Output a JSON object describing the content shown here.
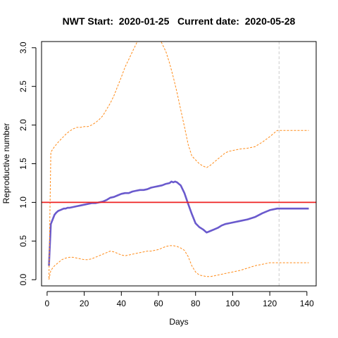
{
  "chart_data": {
    "type": "line",
    "title": "NWT Start:  2020-01-25   Current date:  2020-05-28",
    "xlabel": "Days",
    "ylabel": "Reproductive number",
    "xlim": [
      -3,
      145
    ],
    "ylim": [
      -0.08,
      3.08
    ],
    "x_ticks": [
      0,
      20,
      40,
      60,
      80,
      100,
      120,
      140
    ],
    "y_ticks": [
      0.0,
      0.5,
      1.0,
      1.5,
      2.0,
      2.5,
      3.0
    ],
    "y_tick_labels": [
      "0.0",
      "0.5",
      "1.0",
      "1.5",
      "2.0",
      "2.5",
      "3.0"
    ],
    "reference_line": {
      "y": 1.0,
      "color": "#ee2222"
    },
    "current_day_line": {
      "x": 125,
      "color": "#cccccc"
    },
    "series": [
      {
        "role": "estimate",
        "color": "#6a5acd",
        "style": "solid",
        "x": [
          1,
          2,
          3,
          4,
          5,
          6,
          7,
          8,
          9,
          10,
          11,
          12,
          14,
          16,
          18,
          20,
          22,
          24,
          26,
          28,
          30,
          32,
          34,
          36,
          38,
          40,
          42,
          44,
          46,
          48,
          50,
          52,
          54,
          56,
          58,
          60,
          62,
          64,
          66,
          67,
          68,
          69,
          70,
          71,
          72,
          74,
          76,
          78,
          80,
          82,
          84,
          86,
          88,
          90,
          92,
          94,
          96,
          98,
          100,
          104,
          108,
          112,
          116,
          120,
          124,
          128,
          132,
          136,
          141
        ],
        "y": [
          0.18,
          0.72,
          0.78,
          0.84,
          0.87,
          0.89,
          0.9,
          0.91,
          0.92,
          0.92,
          0.93,
          0.93,
          0.94,
          0.95,
          0.96,
          0.97,
          0.98,
          0.99,
          0.99,
          1.0,
          1.01,
          1.03,
          1.06,
          1.07,
          1.09,
          1.11,
          1.12,
          1.12,
          1.14,
          1.15,
          1.16,
          1.16,
          1.17,
          1.19,
          1.2,
          1.21,
          1.22,
          1.24,
          1.25,
          1.27,
          1.26,
          1.27,
          1.26,
          1.24,
          1.22,
          1.12,
          0.98,
          0.85,
          0.73,
          0.68,
          0.65,
          0.61,
          0.63,
          0.65,
          0.67,
          0.7,
          0.72,
          0.73,
          0.74,
          0.76,
          0.78,
          0.81,
          0.86,
          0.9,
          0.92,
          0.92,
          0.92,
          0.92,
          0.92
        ]
      },
      {
        "role": "upper-bound",
        "color": "#ff8c1a",
        "style": "dashed",
        "x": [
          1,
          2,
          4,
          6,
          8,
          10,
          12,
          14,
          16,
          18,
          20,
          22,
          24,
          26,
          28,
          30,
          32,
          34,
          36,
          38,
          40,
          42,
          44,
          46,
          48,
          50,
          52,
          54,
          56,
          58,
          60,
          62,
          64,
          66,
          68,
          70,
          72,
          74,
          76,
          78,
          80,
          82,
          84,
          86,
          88,
          90,
          92,
          94,
          96,
          98,
          100,
          104,
          108,
          112,
          116,
          120,
          124,
          128,
          132,
          136,
          141
        ],
        "y": [
          0.02,
          1.65,
          1.72,
          1.78,
          1.83,
          1.88,
          1.92,
          1.95,
          1.97,
          1.97,
          1.98,
          1.98,
          2.0,
          2.03,
          2.07,
          2.12,
          2.2,
          2.28,
          2.38,
          2.5,
          2.62,
          2.75,
          2.85,
          2.95,
          3.05,
          3.15,
          3.22,
          3.26,
          3.26,
          3.22,
          3.15,
          3.05,
          2.95,
          2.8,
          2.62,
          2.42,
          2.2,
          1.98,
          1.75,
          1.6,
          1.55,
          1.5,
          1.47,
          1.45,
          1.48,
          1.52,
          1.56,
          1.6,
          1.64,
          1.66,
          1.67,
          1.69,
          1.7,
          1.72,
          1.78,
          1.85,
          1.93,
          1.93,
          1.93,
          1.93,
          1.93
        ]
      },
      {
        "role": "lower-bound",
        "color": "#ff8c1a",
        "style": "dashed",
        "x": [
          1,
          2,
          4,
          6,
          8,
          10,
          12,
          14,
          16,
          18,
          20,
          22,
          24,
          26,
          28,
          30,
          32,
          34,
          36,
          38,
          40,
          42,
          44,
          46,
          48,
          50,
          52,
          54,
          56,
          58,
          60,
          62,
          64,
          66,
          68,
          70,
          72,
          74,
          76,
          78,
          80,
          82,
          84,
          86,
          88,
          90,
          92,
          94,
          96,
          98,
          100,
          104,
          108,
          112,
          116,
          120,
          124,
          128,
          132,
          136,
          141
        ],
        "y": [
          0.0,
          0.12,
          0.18,
          0.22,
          0.26,
          0.28,
          0.29,
          0.29,
          0.28,
          0.27,
          0.26,
          0.26,
          0.27,
          0.29,
          0.31,
          0.33,
          0.35,
          0.37,
          0.36,
          0.34,
          0.32,
          0.31,
          0.32,
          0.33,
          0.34,
          0.35,
          0.36,
          0.37,
          0.37,
          0.38,
          0.39,
          0.41,
          0.43,
          0.44,
          0.44,
          0.43,
          0.41,
          0.38,
          0.3,
          0.18,
          0.1,
          0.06,
          0.05,
          0.04,
          0.04,
          0.05,
          0.06,
          0.07,
          0.08,
          0.09,
          0.1,
          0.12,
          0.15,
          0.18,
          0.2,
          0.22,
          0.22,
          0.22,
          0.22,
          0.22,
          0.22
        ]
      }
    ]
  }
}
